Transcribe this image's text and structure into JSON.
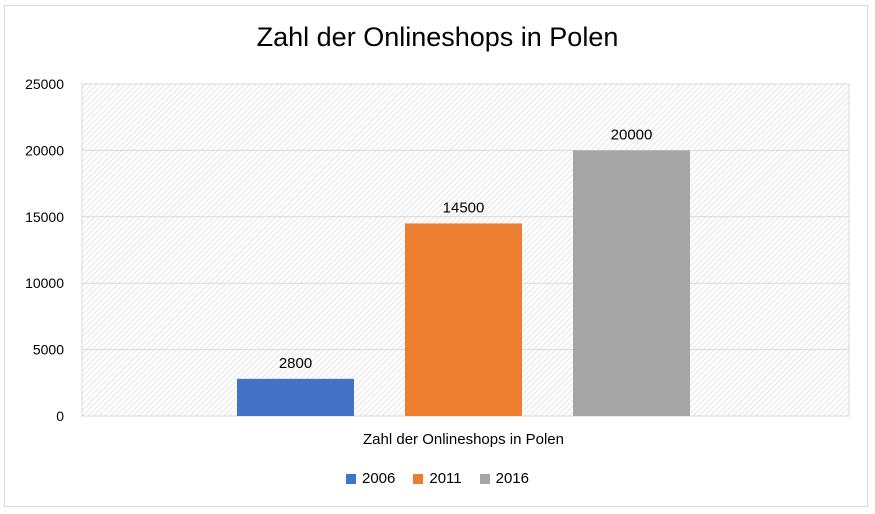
{
  "chart_data": {
    "type": "bar",
    "title": "Zahl der Onlineshops in Polen",
    "categories": [
      "Zahl der Onlineshops in Polen"
    ],
    "series": [
      {
        "name": "2006",
        "values": [
          2800
        ],
        "color": "#4472C4"
      },
      {
        "name": "2011",
        "values": [
          14500
        ],
        "color": "#ED7D31"
      },
      {
        "name": "2016",
        "values": [
          20000
        ],
        "color": "#A5A5A5"
      }
    ],
    "ylim": [
      0,
      25000
    ],
    "yticks": [
      0,
      5000,
      10000,
      15000,
      20000,
      25000
    ],
    "grid": true,
    "legend": "bottom",
    "xlabel": "",
    "ylabel": ""
  }
}
